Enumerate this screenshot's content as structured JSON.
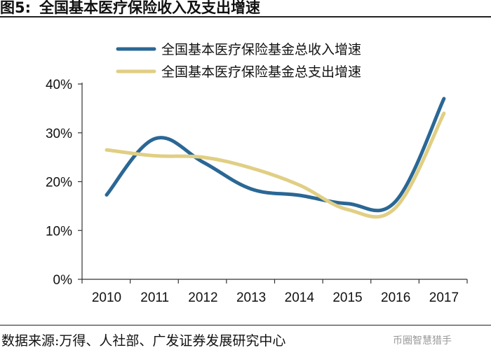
{
  "figure": {
    "label": "图5:",
    "title": "全国基本医疗保险收入及支出增速"
  },
  "chart_data": {
    "type": "line",
    "title": "全国基本医疗保险收入及支出增速",
    "xlabel": "",
    "ylabel": "",
    "categories": [
      "2010",
      "2011",
      "2012",
      "2013",
      "2014",
      "2015",
      "2016",
      "2017"
    ],
    "y_ticks": [
      "0%",
      "10%",
      "20%",
      "30%",
      "40%"
    ],
    "ylim": [
      0,
      40
    ],
    "grid": false,
    "legend_position": "top",
    "series": [
      {
        "name": "全国基本医疗保险基金总收入增速",
        "color": "#2a6795",
        "values": [
          17.3,
          28.8,
          24.0,
          18.5,
          17.2,
          15.5,
          16.0,
          37.0
        ]
      },
      {
        "name": "全国基本医疗保险基金总支出增速",
        "color": "#e0cf84",
        "values": [
          26.5,
          25.3,
          25.0,
          22.8,
          19.3,
          14.3,
          14.7,
          34.0
        ]
      }
    ]
  },
  "source": "数据来源:万得、人社部、广发证券发展研究中心",
  "watermark": "币圈智慧猎手"
}
